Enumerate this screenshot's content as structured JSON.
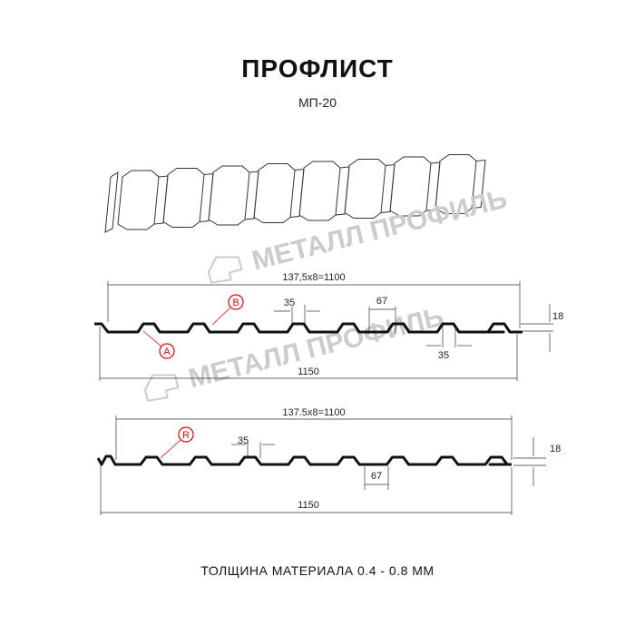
{
  "title": "ПРОФЛИСТ",
  "subtitle": "МП-20",
  "watermark": "МЕТАЛЛ ПРОФИЛЬ",
  "footer": "ТОЛЩИНА МАТЕРИАЛА 0.4 - 0.8 ММ",
  "profile1": {
    "span_label": "137,5x8=1100",
    "total_label": "1150",
    "top_width": "35",
    "trough_width": "67",
    "bottom_width": "35",
    "height": "18",
    "marker_a": "A",
    "marker_b": "B"
  },
  "profile2": {
    "span_label": "137.5x8=1100",
    "total_label": "1150",
    "top_width": "35",
    "trough_width": "67",
    "height": "18",
    "marker_r": "R"
  },
  "colors": {
    "profile": "#111111",
    "marker": "#e00000",
    "watermark": "#cccccc"
  }
}
